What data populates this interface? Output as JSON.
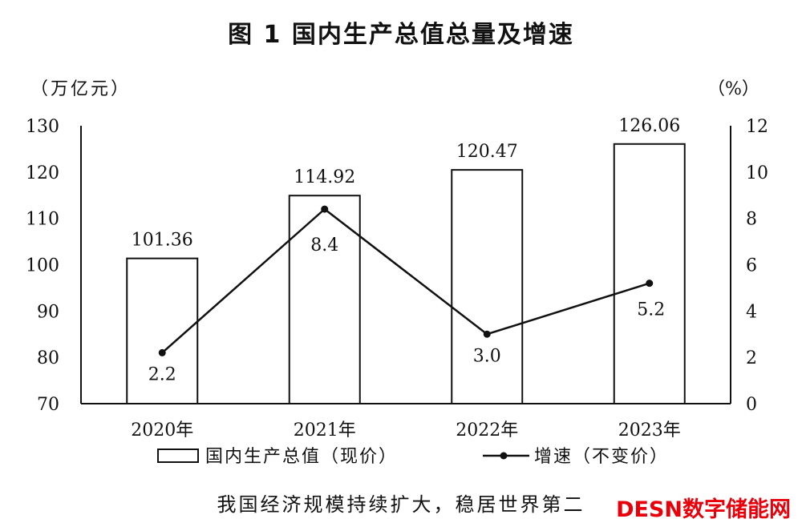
{
  "figure_title": "图 1   国内生产总值总量及增速",
  "caption": "我国经济规模持续扩大，稳居世界第二",
  "watermark": "DESN数字储能网",
  "chart_data": {
    "type": "bar+line",
    "categories": [
      "2020年",
      "2021年",
      "2022年",
      "2023年"
    ],
    "left_axis": {
      "unit_label": "（万亿元）",
      "ylim": [
        70,
        130
      ],
      "ticks": [
        "70",
        "80",
        "90",
        "100",
        "110",
        "120",
        "130"
      ]
    },
    "right_axis": {
      "unit_label": "（%）",
      "ylim": [
        0,
        12
      ],
      "ticks": [
        "0",
        "2",
        "4",
        "6",
        "8",
        "10",
        "12"
      ]
    },
    "series": [
      {
        "name": "国内生产总值（现价）",
        "type": "bar",
        "axis": "left",
        "values": [
          101.36,
          114.92,
          120.47,
          126.06
        ],
        "labels": [
          "101.36",
          "114.92",
          "120.47",
          "126.06"
        ]
      },
      {
        "name": "增速（不变价）",
        "type": "line",
        "axis": "right",
        "values": [
          2.2,
          8.4,
          3.0,
          5.2
        ],
        "labels": [
          "2.2",
          "8.4",
          "3.0",
          "5.2"
        ]
      }
    ],
    "grid": false,
    "legend_position": "bottom"
  }
}
